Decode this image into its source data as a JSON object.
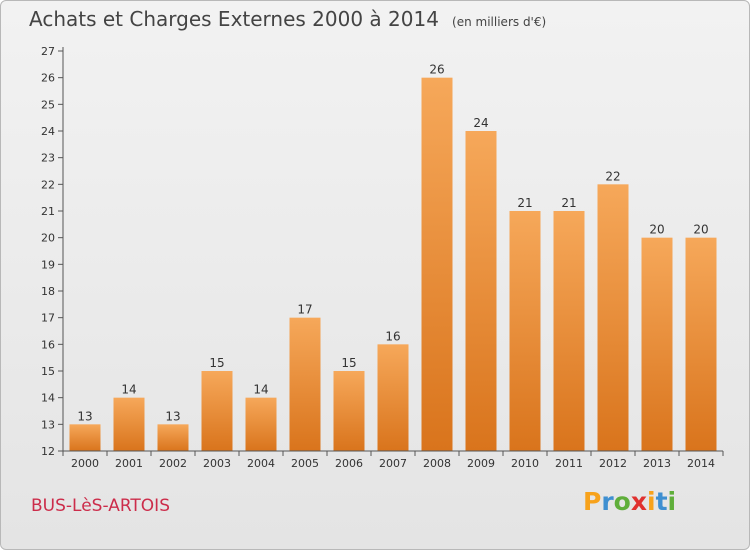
{
  "title": "Achats et Charges Externes 2000 à 2014",
  "subtitle": "(en milliers d'€)",
  "commune": "BUS-LèS-ARTOIS",
  "logo": {
    "text": "Proxiti",
    "letters": [
      "P",
      "r",
      "o",
      "x",
      "i",
      "t",
      "i"
    ],
    "colors": [
      "#f7a21b",
      "#3e8fd1",
      "#5fae3a",
      "#e0312f",
      "#f7a21b",
      "#3e8fd1",
      "#5fae3a"
    ]
  },
  "colors": {
    "bar_light": "#f6a85a",
    "bar_dark": "#d9741c",
    "axis": "#555555",
    "title": "#444444"
  },
  "chart_data": {
    "type": "bar",
    "categories": [
      "2000",
      "2001",
      "2002",
      "2003",
      "2004",
      "2005",
      "2006",
      "2007",
      "2008",
      "2009",
      "2010",
      "2011",
      "2012",
      "2013",
      "2014"
    ],
    "values": [
      13,
      14,
      13,
      15,
      14,
      17,
      15,
      16,
      26,
      24,
      21,
      21,
      22,
      20,
      20
    ],
    "ylim": [
      12,
      27
    ],
    "yticks": [
      12,
      13,
      14,
      15,
      16,
      17,
      18,
      19,
      20,
      21,
      22,
      23,
      24,
      25,
      26,
      27
    ],
    "grid": false,
    "legend": "none"
  }
}
